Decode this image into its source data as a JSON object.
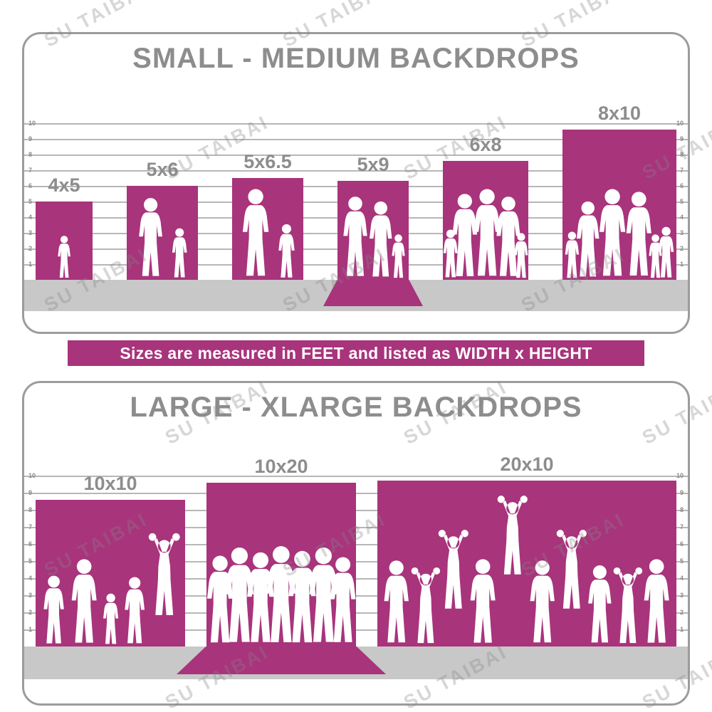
{
  "watermark": {
    "text": "SU TAIBAI"
  },
  "banner": {
    "text": "Sizes are measured in FEET and listed as WIDTH x HEIGHT"
  },
  "colors": {
    "magenta": "#a8347c",
    "title_gray": "#8d8d8d",
    "floor_gray": "#c8c8c8",
    "grid_line": "#b7b7b7",
    "tick_gray": "#8a8a8a",
    "border_gray": "#9c9c9c"
  },
  "chart_data": [
    {
      "type": "bar",
      "title": "SMALL - MEDIUM BACKDROPS",
      "unit": "feet",
      "ylim": [
        0,
        10
      ],
      "yticks": [
        1,
        2,
        3,
        4,
        5,
        6,
        7,
        8,
        9,
        10
      ],
      "grid": true,
      "note": "sizes listed as WIDTH x HEIGHT in feet",
      "bars": [
        {
          "label": "4x5",
          "width_ft": 4,
          "height_ft": 5,
          "display_height_ft": 5.0,
          "floor_sweep": false,
          "figures": [
            {
              "h": 2.9
            }
          ]
        },
        {
          "label": "5x6",
          "width_ft": 5,
          "height_ft": 6,
          "display_height_ft": 6.0,
          "floor_sweep": false,
          "figures": [
            {
              "h": 5.4
            },
            {
              "h": 3.4
            }
          ]
        },
        {
          "label": "5x6.5",
          "width_ft": 5,
          "height_ft": 6.5,
          "display_height_ft": 6.5,
          "floor_sweep": false,
          "figures": [
            {
              "h": 6.0
            },
            {
              "h": 3.7
            }
          ]
        },
        {
          "label": "5x9",
          "width_ft": 5,
          "height_ft": 9,
          "display_height_ft": 6.3,
          "floor_sweep": true,
          "figures": [
            {
              "h": 5.5
            },
            {
              "h": 5.2
            },
            {
              "h": 3.0
            }
          ]
        },
        {
          "label": "6x8",
          "width_ft": 6,
          "height_ft": 8,
          "display_height_ft": 7.6,
          "floor_sweep": false,
          "figures": [
            {
              "h": 3.3
            },
            {
              "h": 5.7
            },
            {
              "h": 6.0
            },
            {
              "h": 5.5
            },
            {
              "h": 3.1
            }
          ]
        },
        {
          "label": "8x10",
          "width_ft": 8,
          "height_ft": 10,
          "display_height_ft": 9.6,
          "floor_sweep": false,
          "figures": [
            {
              "h": 3.2
            },
            {
              "h": 5.2
            },
            {
              "h": 6.0
            },
            {
              "h": 5.8
            },
            {
              "h": 3.0
            },
            {
              "h": 3.5
            }
          ]
        }
      ]
    },
    {
      "type": "bar",
      "title": "LARGE - XLARGE BACKDROPS",
      "unit": "feet",
      "ylim": [
        0,
        10
      ],
      "yticks": [
        1,
        2,
        3,
        4,
        5,
        6,
        7,
        8,
        9,
        10
      ],
      "grid": true,
      "note": "sizes listed as WIDTH x HEIGHT in feet",
      "bars": [
        {
          "label": "10x10",
          "width_ft": 10,
          "height_ft": 10,
          "display_height_ft": 8.6,
          "floor_sweep": false,
          "figures": [
            {
              "h": 4.3
            },
            {
              "h": 5.3
            },
            {
              "h": 3.2
            },
            {
              "h": 4.2
            },
            {
              "h": 5.2,
              "pose": "up",
              "lift": 1.6
            }
          ]
        },
        {
          "label": "10x20",
          "width_ft": 10,
          "height_ft": 20,
          "display_height_ft": 9.6,
          "floor_sweep": true,
          "figures": [
            {
              "h": 5.5
            },
            {
              "h": 6.0
            },
            {
              "h": 5.7
            },
            {
              "h": 6.1
            },
            {
              "h": 5.8
            },
            {
              "h": 6.0
            },
            {
              "h": 5.4
            }
          ]
        },
        {
          "label": "20x10",
          "width_ft": 20,
          "height_ft": 10,
          "display_height_ft": 9.7,
          "floor_sweep": false,
          "figures": [
            {
              "h": 5.2
            },
            {
              "h": 4.8,
              "pose": "up"
            },
            {
              "h": 5.0,
              "pose": "up",
              "lift": 2.0
            },
            {
              "h": 5.3
            },
            {
              "h": 5.0,
              "pose": "up",
              "lift": 4.0
            },
            {
              "h": 5.2
            },
            {
              "h": 5.0,
              "pose": "up",
              "lift": 2.0
            },
            {
              "h": 4.9
            },
            {
              "h": 4.8,
              "pose": "up"
            },
            {
              "h": 5.3
            }
          ]
        }
      ]
    }
  ]
}
